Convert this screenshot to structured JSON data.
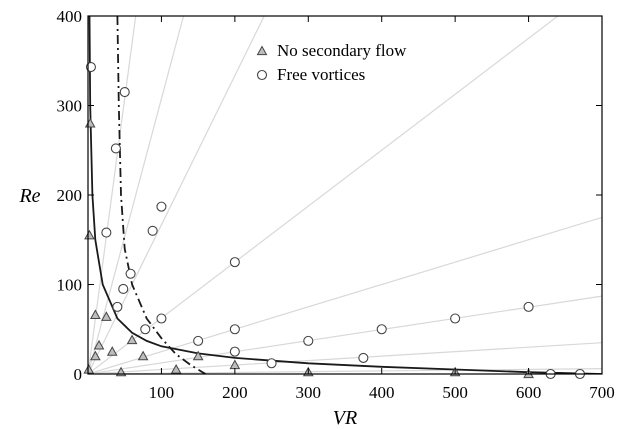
{
  "chart_data": {
    "type": "scatter",
    "xlabel": "VR",
    "ylabel": "Re",
    "xlim": [
      0,
      700
    ],
    "ylim": [
      0,
      400
    ],
    "xticks": [
      "100",
      "200",
      "300",
      "400",
      "500",
      "600",
      "700"
    ],
    "yticks": [
      "0",
      "100",
      "200",
      "300",
      "400"
    ],
    "legend_position": "top-center",
    "series": [
      {
        "name": "No secondary flow",
        "marker": "triangle",
        "color": "#555555",
        "points": [
          [
            1,
            5
          ],
          [
            2,
            155
          ],
          [
            3,
            280
          ],
          [
            10,
            20
          ],
          [
            10,
            66
          ],
          [
            15,
            32
          ],
          [
            25,
            64
          ],
          [
            33,
            25
          ],
          [
            45,
            2
          ],
          [
            60,
            38
          ],
          [
            75,
            20
          ],
          [
            120,
            5
          ],
          [
            150,
            20
          ],
          [
            200,
            10
          ],
          [
            300,
            2
          ],
          [
            500,
            2
          ],
          [
            600,
            0
          ]
        ]
      },
      {
        "name": "Free vortices",
        "marker": "circle",
        "color": "#555555",
        "points": [
          [
            4,
            343
          ],
          [
            25,
            158
          ],
          [
            38,
            252
          ],
          [
            40,
            75
          ],
          [
            48,
            95
          ],
          [
            50,
            315
          ],
          [
            58,
            112
          ],
          [
            78,
            50
          ],
          [
            88,
            160
          ],
          [
            100,
            187
          ],
          [
            100,
            62
          ],
          [
            150,
            37
          ],
          [
            200,
            125
          ],
          [
            200,
            50
          ],
          [
            200,
            25
          ],
          [
            250,
            12
          ],
          [
            300,
            37
          ],
          [
            375,
            18
          ],
          [
            400,
            50
          ],
          [
            500,
            62
          ],
          [
            600,
            75
          ],
          [
            630,
            0
          ],
          [
            670,
            0
          ]
        ]
      }
    ],
    "lines": [
      {
        "style": "solid",
        "color": "#1a1a1a",
        "points": [
          [
            2,
            400
          ],
          [
            3,
            300
          ],
          [
            6,
            200
          ],
          [
            10,
            150
          ],
          [
            20,
            100
          ],
          [
            40,
            62
          ],
          [
            60,
            46
          ],
          [
            80,
            37
          ],
          [
            100,
            31
          ],
          [
            150,
            23
          ],
          [
            200,
            18
          ],
          [
            300,
            12
          ],
          [
            400,
            8
          ],
          [
            500,
            5
          ],
          [
            600,
            2
          ],
          [
            700,
            0
          ]
        ]
      },
      {
        "style": "dashed",
        "color": "#1a1a1a",
        "points": [
          [
            40,
            400
          ],
          [
            42,
            300
          ],
          [
            45,
            200
          ],
          [
            50,
            140
          ],
          [
            60,
            100
          ],
          [
            80,
            62
          ],
          [
            100,
            40
          ],
          [
            120,
            22
          ],
          [
            140,
            10
          ],
          [
            160,
            0
          ]
        ]
      }
    ],
    "guide_lines": [
      {
        "color": "#d8d8d8",
        "points": [
          [
            0,
            0
          ],
          [
            65,
            400
          ]
        ]
      },
      {
        "color": "#d8d8d8",
        "points": [
          [
            0,
            0
          ],
          [
            130,
            400
          ]
        ]
      },
      {
        "color": "#d8d8d8",
        "points": [
          [
            0,
            0
          ],
          [
            240,
            400
          ]
        ]
      },
      {
        "color": "#d8d8d8",
        "points": [
          [
            0,
            0
          ],
          [
            640,
            400
          ]
        ]
      },
      {
        "color": "#d8d8d8",
        "points": [
          [
            0,
            0
          ],
          [
            700,
            175
          ]
        ]
      },
      {
        "color": "#d8d8d8",
        "points": [
          [
            0,
            0
          ],
          [
            700,
            87
          ]
        ]
      },
      {
        "color": "#d8d8d8",
        "points": [
          [
            0,
            0
          ],
          [
            700,
            35
          ]
        ]
      },
      {
        "color": "#d8d8d8",
        "points": [
          [
            0,
            0
          ],
          [
            700,
            6
          ]
        ]
      }
    ]
  }
}
